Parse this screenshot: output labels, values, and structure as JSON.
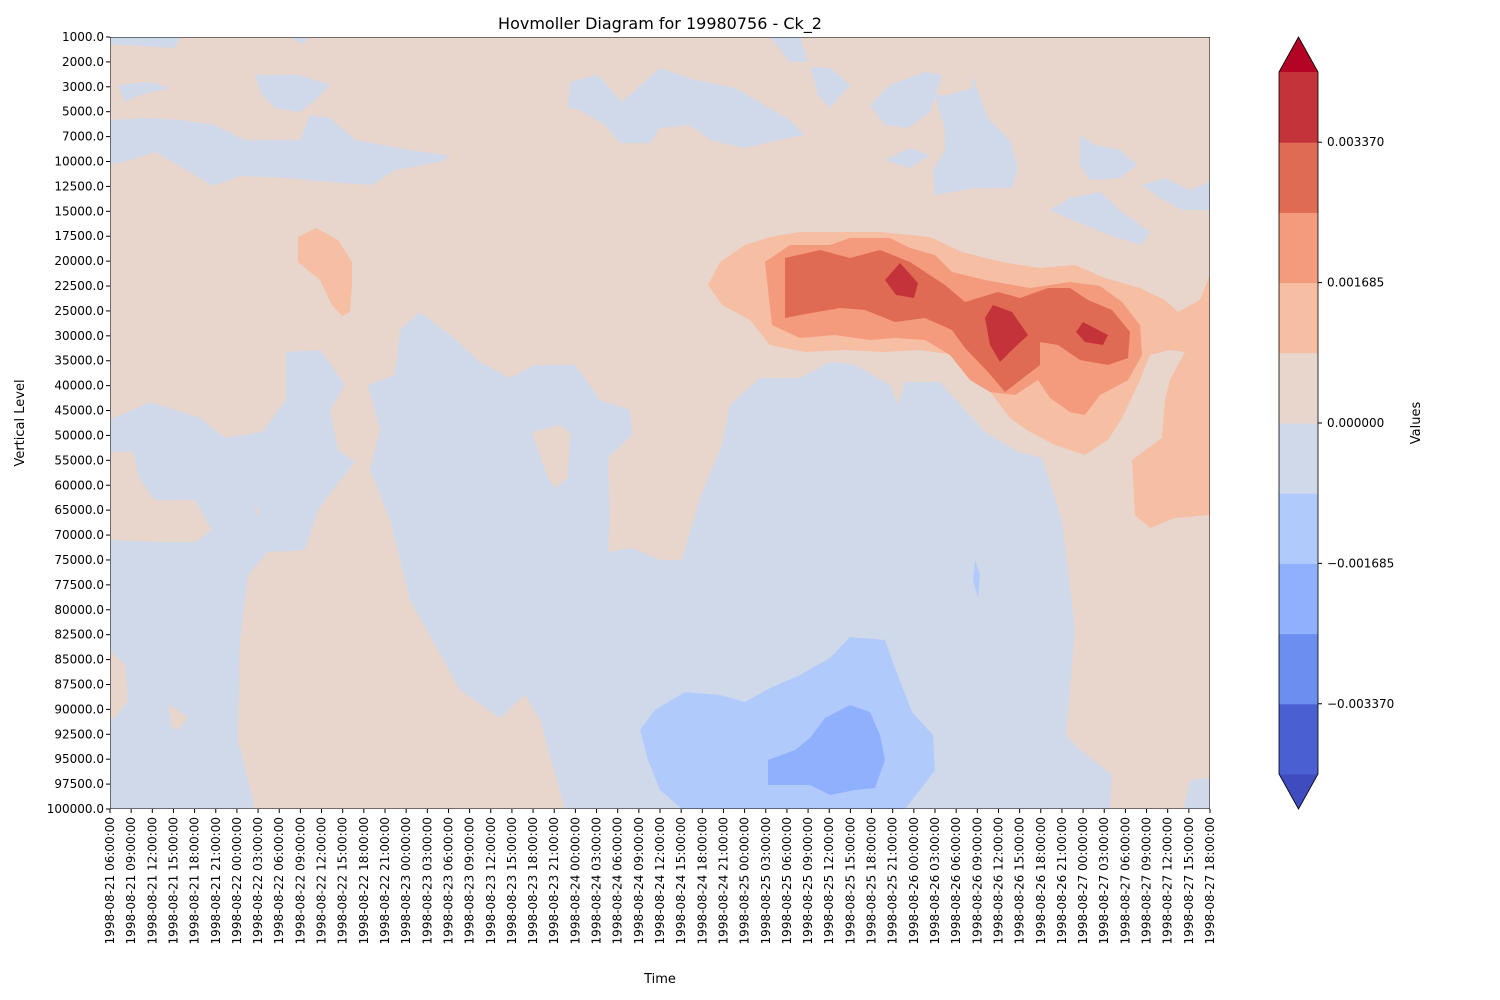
{
  "chart_data": {
    "type": "heatmap",
    "subtype": "filled-contour (Hovmoller)",
    "title": "Hovmoller Diagram for 19980756 - Ck_2",
    "xlabel": "Time",
    "ylabel": "Vertical Level",
    "colorbar_label": "Values",
    "colormap": "coolwarm",
    "colorbar_extend": "both",
    "y_categories": [
      "1000.0",
      "2000.0",
      "3000.0",
      "5000.0",
      "7000.0",
      "10000.0",
      "12500.0",
      "15000.0",
      "17500.0",
      "20000.0",
      "22500.0",
      "25000.0",
      "30000.0",
      "35000.0",
      "40000.0",
      "45000.0",
      "50000.0",
      "55000.0",
      "60000.0",
      "65000.0",
      "70000.0",
      "75000.0",
      "77500.0",
      "80000.0",
      "82500.0",
      "85000.0",
      "87500.0",
      "90000.0",
      "92500.0",
      "95000.0",
      "97500.0",
      "100000.0"
    ],
    "x_categories": [
      "1998-08-21 06:00:00",
      "1998-08-21 09:00:00",
      "1998-08-21 12:00:00",
      "1998-08-21 15:00:00",
      "1998-08-21 18:00:00",
      "1998-08-21 21:00:00",
      "1998-08-22 00:00:00",
      "1998-08-22 03:00:00",
      "1998-08-22 06:00:00",
      "1998-08-22 09:00:00",
      "1998-08-22 12:00:00",
      "1998-08-22 15:00:00",
      "1998-08-22 18:00:00",
      "1998-08-22 21:00:00",
      "1998-08-23 00:00:00",
      "1998-08-23 03:00:00",
      "1998-08-23 06:00:00",
      "1998-08-23 09:00:00",
      "1998-08-23 12:00:00",
      "1998-08-23 15:00:00",
      "1998-08-23 18:00:00",
      "1998-08-23 21:00:00",
      "1998-08-24 00:00:00",
      "1998-08-24 03:00:00",
      "1998-08-24 06:00:00",
      "1998-08-24 09:00:00",
      "1998-08-24 12:00:00",
      "1998-08-24 15:00:00",
      "1998-08-24 18:00:00",
      "1998-08-24 21:00:00",
      "1998-08-25 00:00:00",
      "1998-08-25 03:00:00",
      "1998-08-25 06:00:00",
      "1998-08-25 09:00:00",
      "1998-08-25 12:00:00",
      "1998-08-25 15:00:00",
      "1998-08-25 18:00:00",
      "1998-08-25 21:00:00",
      "1998-08-26 00:00:00",
      "1998-08-26 03:00:00",
      "1998-08-26 06:00:00",
      "1998-08-26 09:00:00",
      "1998-08-26 12:00:00",
      "1998-08-26 15:00:00",
      "1998-08-26 18:00:00",
      "1998-08-26 21:00:00",
      "1998-08-27 00:00:00",
      "1998-08-27 03:00:00",
      "1998-08-27 06:00:00",
      "1998-08-27 09:00:00",
      "1998-08-27 12:00:00",
      "1998-08-27 15:00:00",
      "1998-08-27 18:00:00"
    ],
    "colorbar": {
      "ticks": [
        0.00337,
        0.001685,
        0.0,
        -0.001685,
        -0.00337
      ],
      "tick_labels": [
        "0.003370",
        "0.001685",
        "0.000000",
        "−0.001685",
        "−0.003370"
      ],
      "levels": [
        -0.004213,
        -0.00337,
        -0.002528,
        -0.001685,
        -0.000843,
        0.0,
        0.000843,
        0.001685,
        0.002528,
        0.00337,
        0.004213
      ],
      "level_colors": [
        "#4a5fd2",
        "#6c8ef0",
        "#8fb0fd",
        "#b0cbfb",
        "#cfd9ea",
        "#e8d6cd",
        "#f6bea3",
        "#f39b7c",
        "#e06b53",
        "#c5333a"
      ],
      "under_color": "#3f4cc0",
      "over_color": "#b40426"
    },
    "background_band_value_range": [
      0.0,
      0.000843
    ],
    "features": [
      {
        "sign": "positive",
        "band_max": [
          0.00337,
          0.004213
        ],
        "time": "1998-08-25 21:00:00",
        "level": "22500.0"
      },
      {
        "sign": "positive",
        "band_max": [
          0.00337,
          0.004213
        ],
        "time": "1998-08-26 12:00:00",
        "level": "30000.0"
      },
      {
        "sign": "positive",
        "band_max": [
          0.00337,
          0.004213
        ],
        "time": "1998-08-27 00:00:00",
        "level": "30000.0"
      },
      {
        "sign": "negative",
        "band_min": [
          -0.002528,
          -0.001685
        ],
        "time": "1998-08-25 15:00:00",
        "level": "95000.0"
      }
    ]
  }
}
